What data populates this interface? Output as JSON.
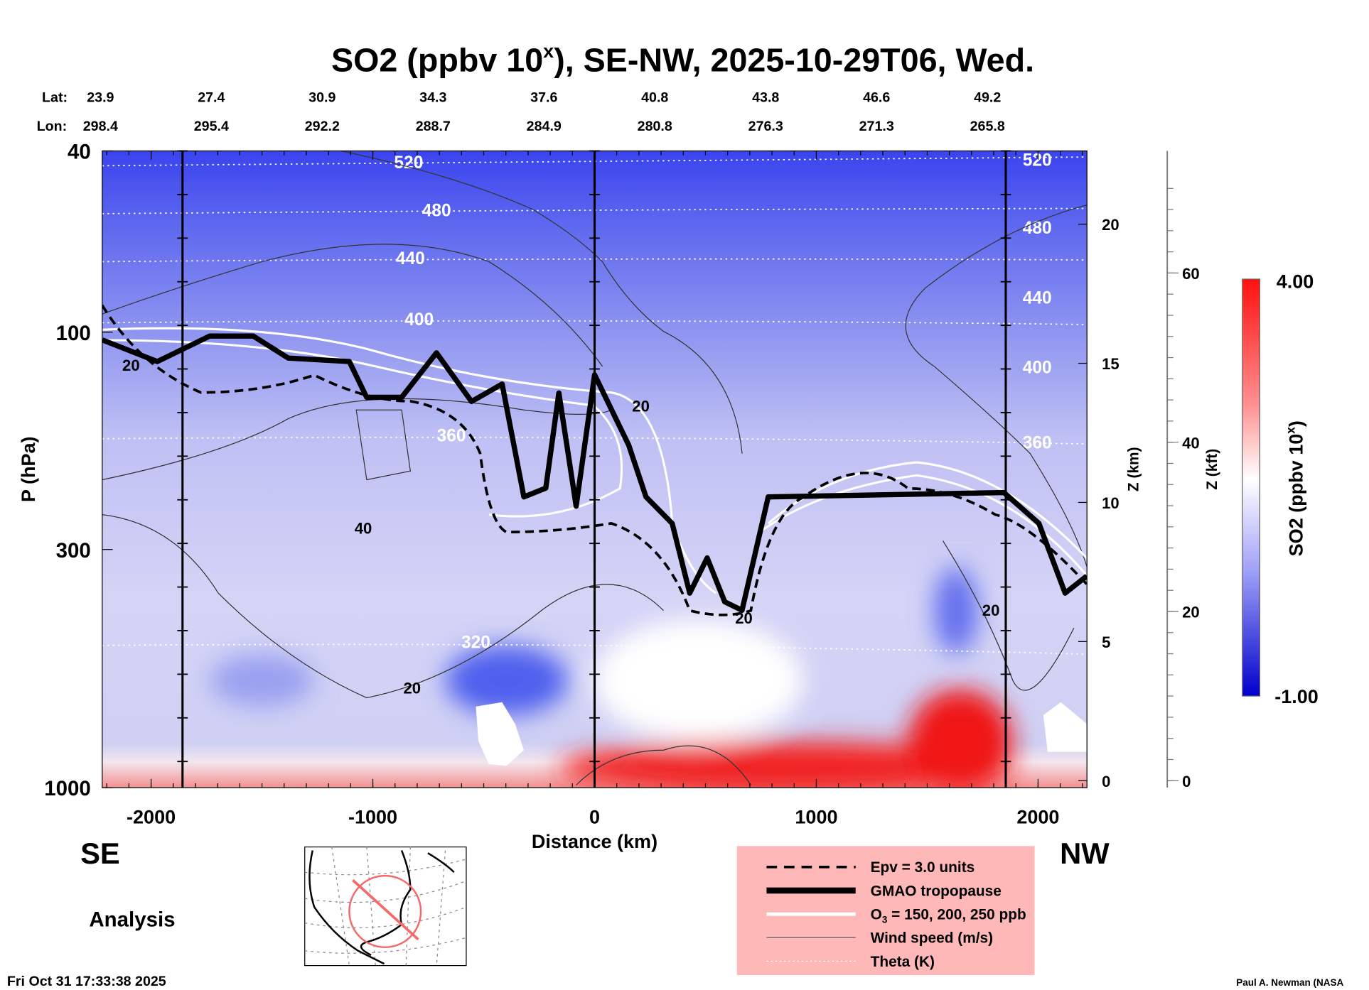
{
  "chart_data": {
    "type": "heatmap",
    "title": "SO2 (ppbv 10",
    "title_sup": "x",
    "title_rest": "), SE-NW, 2025-10-29T06, Wed.",
    "lat_label": "Lat:",
    "lon_label": "Lon:",
    "lats": [
      "23.9",
      "27.4",
      "30.9",
      "34.3",
      "37.6",
      "40.8",
      "43.8",
      "46.6",
      "49.2"
    ],
    "lons": [
      "298.4",
      "295.4",
      "292.2",
      "288.7",
      "284.9",
      "280.8",
      "276.3",
      "271.3",
      "265.8"
    ],
    "xlabel": "Distance (km)",
    "xlim": [
      -2220,
      2220
    ],
    "xticks": [
      "-2000",
      "-1000",
      "0",
      "1000",
      "2000"
    ],
    "ylabel": "P (hPa)",
    "ylim": [
      1000,
      40
    ],
    "yticks": [
      "40",
      "100",
      "300",
      "1000"
    ],
    "z_km_label": "Z (km)",
    "z_km_ticks": [
      "0",
      "5",
      "10",
      "15",
      "20"
    ],
    "z_kft_label": "Z (kft)",
    "z_kft_ticks": [
      "0",
      "20",
      "40",
      "60"
    ],
    "colorbar": {
      "label": "SO2 (ppbv 10",
      "label_sup": "x",
      "label_end": ")",
      "max": "4.00",
      "min": "-1.00",
      "low_color": "#0000dd",
      "mid_color": "#ffffff",
      "high_color": "#ff1010"
    },
    "theta_labels_left": [
      "520",
      "480",
      "440",
      "400",
      "360",
      "320"
    ],
    "theta_labels_right": [
      "520",
      "480",
      "440",
      "400",
      "360"
    ],
    "wind_labels": [
      "20",
      "40",
      "20",
      "20",
      "20",
      "20"
    ],
    "tropopause": {
      "km": [
        -2220,
        -1972,
        -1736,
        -1539,
        -1382,
        -1106,
        -1028,
        -870,
        -713,
        -555,
        -417,
        -319,
        -220,
        -161,
        -83,
        0,
        154,
        232,
        350,
        429,
        508,
        587,
        665,
        783,
        1846,
        2004,
        2122,
        2220
      ],
      "hPa": [
        104,
        116,
        102,
        102,
        114,
        116,
        139,
        139,
        111,
        142,
        130,
        230,
        220,
        136,
        241,
        124,
        177,
        230,
        263,
        374,
        313,
        391,
        408,
        230,
        225,
        263,
        374,
        343
      ]
    },
    "legend": [
      {
        "style": "dashed",
        "label": "Epv = 3.0 units"
      },
      {
        "style": "thick",
        "label": "GMAO tropopause"
      },
      {
        "style": "white",
        "label_pre": "O",
        "label_sub": "3",
        "label": " = 150, 200, 250 ppb"
      },
      {
        "style": "thin",
        "label": "Wind speed (m/s)"
      },
      {
        "style": "dotted",
        "label": "Theta (K)"
      }
    ],
    "legend_bg": "#ffb8b8"
  },
  "labels": {
    "se": "SE",
    "nw": "NW",
    "analysis": "Analysis",
    "timestamp": "Fri Oct 31 17:33:38 2025",
    "credit": "Paul A. Newman (NASA"
  }
}
